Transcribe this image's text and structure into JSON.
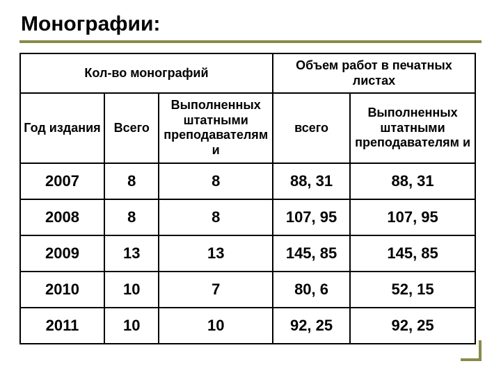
{
  "title": "Монографии:",
  "headers": {
    "group_count": "Кол-во монографий",
    "group_volume": "Объем работ в печатных листах",
    "year": "Год издания",
    "total": "Всего",
    "by_staff": "Выполненных штатными преподавателям и",
    "total_lc": "всего",
    "by_staff2": "Выполненных штатными преподавателям и"
  },
  "rows": [
    {
      "year": "2007",
      "total": "8",
      "by_staff": "8",
      "vol_total": "88, 31",
      "vol_staff": "88, 31"
    },
    {
      "year": "2008",
      "total": "8",
      "by_staff": "8",
      "vol_total": "107, 95",
      "vol_staff": "107, 95"
    },
    {
      "year": "2009",
      "total": "13",
      "by_staff": "13",
      "vol_total": "145, 85",
      "vol_staff": "145, 85"
    },
    {
      "year": "2010",
      "total": "10",
      "by_staff": "7",
      "vol_total": "80, 6",
      "vol_staff": "52, 15"
    },
    {
      "year": "2011",
      "total": "10",
      "by_staff": "10",
      "vol_total": "92, 25",
      "vol_staff": "92, 25"
    }
  ],
  "styling": {
    "rule_color": "#8a8a4a",
    "border_color": "#000000",
    "title_fontsize": 30,
    "header_fontsize": 18,
    "cell_fontsize": 22,
    "background": "#ffffff"
  }
}
